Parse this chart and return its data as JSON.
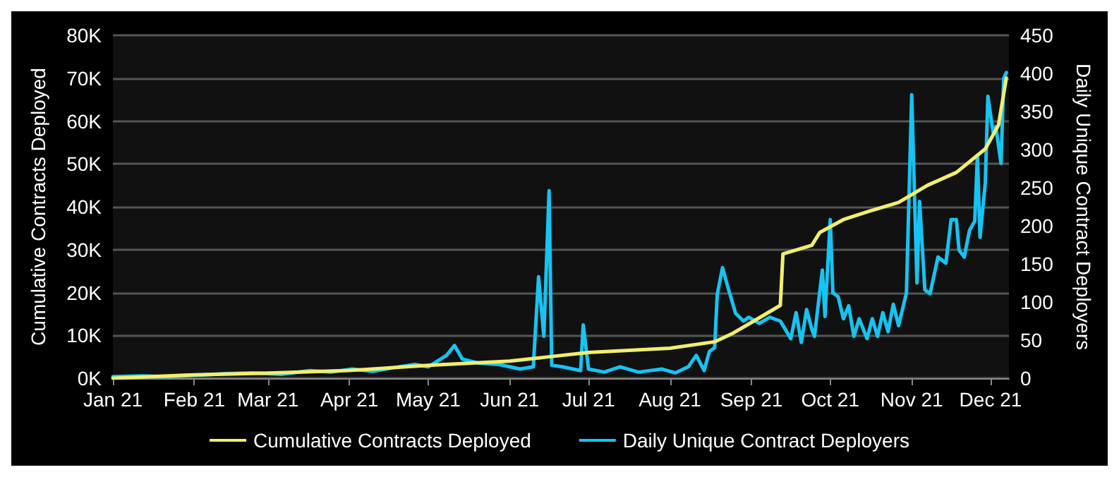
{
  "chart_data": {
    "type": "line",
    "xlabel": null,
    "ylabel": "Cumulative Contracts Deployed",
    "y2label": "Daily Unique Contract Deployers",
    "xlim": [
      "2021-01-01",
      "2021-12-08"
    ],
    "xticks": [
      {
        "value": "2021-01-01",
        "label": "Jan 21"
      },
      {
        "value": "2021-02-01",
        "label": "Feb 21"
      },
      {
        "value": "2021-03-01",
        "label": "Mar 21"
      },
      {
        "value": "2021-04-01",
        "label": "Apr 21"
      },
      {
        "value": "2021-05-01",
        "label": "May 21"
      },
      {
        "value": "2021-06-01",
        "label": "Jun 21"
      },
      {
        "value": "2021-07-01",
        "label": "Jul 21"
      },
      {
        "value": "2021-08-01",
        "label": "Aug 21"
      },
      {
        "value": "2021-09-01",
        "label": "Sep 21"
      },
      {
        "value": "2021-10-01",
        "label": "Oct 21"
      },
      {
        "value": "2021-11-01",
        "label": "Nov 21"
      },
      {
        "value": "2021-12-01",
        "label": "Dec 21"
      }
    ],
    "ylim": [
      0,
      80000
    ],
    "yticks": [
      {
        "value": 0,
        "label": "0K"
      },
      {
        "value": 10000,
        "label": "10K"
      },
      {
        "value": 20000,
        "label": "20K"
      },
      {
        "value": 30000,
        "label": "30K"
      },
      {
        "value": 40000,
        "label": "40K"
      },
      {
        "value": 50000,
        "label": "50K"
      },
      {
        "value": 60000,
        "label": "60K"
      },
      {
        "value": 70000,
        "label": "70K"
      },
      {
        "value": 80000,
        "label": "80K"
      }
    ],
    "y2lim": [
      0,
      450
    ],
    "y2ticks": [
      0,
      50,
      100,
      150,
      200,
      250,
      300,
      350,
      400,
      450
    ],
    "grid": "y",
    "legend": "bottom",
    "marker": "none",
    "line_style": "solid",
    "series": [
      {
        "name": "Cumulative Contracts Deployed",
        "color": "#f2ee6e",
        "x": [
          "2021-01-01",
          "2021-02-01",
          "2021-03-01",
          "2021-04-01",
          "2021-05-01",
          "2021-06-01",
          "2021-06-16",
          "2021-07-01",
          "2021-08-01",
          "2021-08-18",
          "2021-08-25",
          "2021-09-01",
          "2021-09-12",
          "2021-09-13",
          "2021-09-24",
          "2021-09-27",
          "2021-10-06",
          "2021-10-16",
          "2021-10-27",
          "2021-11-07",
          "2021-11-18",
          "2021-11-29",
          "2021-12-04",
          "2021-12-07"
        ],
        "values": [
          0,
          800,
          1200,
          1800,
          3000,
          4000,
          5000,
          6000,
          7000,
          8500,
          10500,
          13000,
          17000,
          29000,
          31000,
          34000,
          37000,
          39000,
          41000,
          45000,
          48000,
          53500,
          59000,
          70000
        ]
      },
      {
        "name": "Daily Unique Contract Deployers",
        "color": "#17c3f0",
        "axis": "y2",
        "x": [
          "2021-01-01",
          "2021-01-12",
          "2021-01-22",
          "2021-02-02",
          "2021-02-13",
          "2021-02-23",
          "2021-03-06",
          "2021-03-17",
          "2021-03-25",
          "2021-04-02",
          "2021-04-10",
          "2021-04-18",
          "2021-04-26",
          "2021-05-01",
          "2021-05-08",
          "2021-05-11",
          "2021-05-14",
          "2021-05-20",
          "2021-05-28",
          "2021-06-05",
          "2021-06-10",
          "2021-06-12",
          "2021-06-14",
          "2021-06-16",
          "2021-06-17",
          "2021-06-21",
          "2021-06-28",
          "2021-06-29",
          "2021-07-01",
          "2021-07-07",
          "2021-07-13",
          "2021-07-20",
          "2021-07-29",
          "2021-08-03",
          "2021-08-08",
          "2021-08-11",
          "2021-08-14",
          "2021-08-16",
          "2021-08-18",
          "2021-08-19",
          "2021-08-21",
          "2021-08-23",
          "2021-08-26",
          "2021-08-29",
          "2021-08-31",
          "2021-09-04",
          "2021-09-08",
          "2021-09-12",
          "2021-09-16",
          "2021-09-18",
          "2021-09-20",
          "2021-09-22",
          "2021-09-24",
          "2021-09-25",
          "2021-09-28",
          "2021-09-29",
          "2021-10-01",
          "2021-10-02",
          "2021-10-04",
          "2021-10-06",
          "2021-10-08",
          "2021-10-10",
          "2021-10-12",
          "2021-10-15",
          "2021-10-17",
          "2021-10-19",
          "2021-10-21",
          "2021-10-23",
          "2021-10-25",
          "2021-10-27",
          "2021-10-30",
          "2021-11-01",
          "2021-11-03",
          "2021-11-04",
          "2021-11-06",
          "2021-11-08",
          "2021-11-11",
          "2021-11-14",
          "2021-11-16",
          "2021-11-18",
          "2021-11-19",
          "2021-11-21",
          "2021-11-23",
          "2021-11-25",
          "2021-11-26",
          "2021-11-27",
          "2021-11-29",
          "2021-11-30",
          "2021-12-02",
          "2021-12-03",
          "2021-12-05",
          "2021-12-06",
          "2021-12-07"
        ],
        "values": [
          2,
          3,
          2,
          4,
          6,
          7,
          5,
          10,
          8,
          12,
          9,
          14,
          18,
          15,
          30,
          43,
          25,
          20,
          18,
          12,
          15,
          133,
          55,
          246,
          17,
          15,
          10,
          70,
          12,
          8,
          15,
          8,
          12,
          7,
          15,
          30,
          10,
          35,
          40,
          110,
          145,
          120,
          85,
          75,
          80,
          72,
          80,
          75,
          52,
          86,
          47,
          90,
          64,
          55,
          142,
          81,
          208,
          112,
          107,
          78,
          95,
          55,
          78,
          52,
          78,
          55,
          86,
          61,
          97,
          69,
          112,
          372,
          125,
          232,
          116,
          111,
          159,
          151,
          208,
          208,
          168,
          159,
          194,
          206,
          292,
          185,
          256,
          370,
          322,
          330,
          282,
          393,
          401
        ]
      }
    ]
  }
}
